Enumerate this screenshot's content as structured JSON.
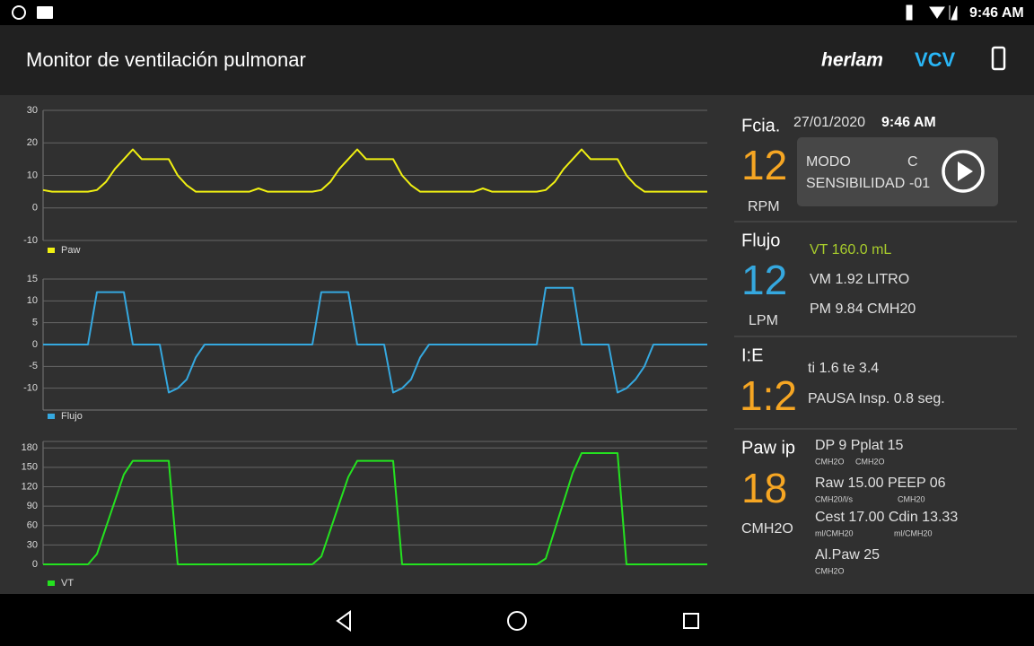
{
  "status_bar": {
    "time": "9:46 AM"
  },
  "header": {
    "title": "Monitor de ventilación pulmonar",
    "brand": "herlam",
    "mode": "VCV"
  },
  "chart_data": [
    {
      "type": "line",
      "ylim": [
        -10,
        30
      ],
      "yticks": [
        -10,
        0,
        10,
        20,
        30
      ],
      "grid": true,
      "series": [
        {
          "name": "Paw",
          "color": "#f0f012",
          "values": [
            5.5,
            5,
            5,
            5,
            5,
            5,
            5.5,
            8,
            12,
            15,
            18,
            15,
            15,
            15,
            15,
            10,
            7,
            5,
            5,
            5,
            5,
            5,
            5,
            5,
            6,
            5,
            5,
            5,
            5,
            5,
            5,
            5.5,
            8,
            12,
            15,
            18,
            15,
            15,
            15,
            15,
            10,
            7,
            5,
            5,
            5,
            5,
            5,
            5,
            5,
            6,
            5,
            5,
            5,
            5,
            5,
            5,
            5.5,
            8,
            12,
            15,
            18,
            15,
            15,
            15,
            15,
            10,
            7,
            5,
            5,
            5,
            5,
            5,
            5,
            5,
            5
          ]
        }
      ]
    },
    {
      "type": "line",
      "ylim": [
        -15,
        15
      ],
      "yticks": [
        -10,
        -5,
        0,
        5,
        10,
        15
      ],
      "grid": true,
      "series": [
        {
          "name": "Flujo",
          "color": "#35a8df",
          "values": [
            0,
            0,
            0,
            0,
            0,
            0,
            12,
            12,
            12,
            12,
            0,
            0,
            0,
            0,
            -11,
            -10,
            -8,
            -3,
            0,
            0,
            0,
            0,
            0,
            0,
            0,
            0,
            0,
            0,
            0,
            0,
            0,
            12,
            12,
            12,
            12,
            0,
            0,
            0,
            0,
            -11,
            -10,
            -8,
            -3,
            0,
            0,
            0,
            0,
            0,
            0,
            0,
            0,
            0,
            0,
            0,
            0,
            0,
            13,
            13,
            13,
            13,
            0,
            0,
            0,
            0,
            -11,
            -10,
            -8,
            -5,
            0,
            0,
            0,
            0,
            0,
            0,
            0
          ]
        }
      ]
    },
    {
      "type": "line",
      "ylim": [
        0,
        190
      ],
      "yticks": [
        0,
        30,
        60,
        90,
        120,
        150,
        180
      ],
      "grid": true,
      "series": [
        {
          "name": "VT",
          "color": "#24e21f",
          "values": [
            0,
            0,
            0,
            0,
            0,
            0,
            16,
            57,
            98,
            139,
            160,
            160,
            160,
            160,
            160,
            0,
            0,
            0,
            0,
            0,
            0,
            0,
            0,
            0,
            0,
            0,
            0,
            0,
            0,
            0,
            0,
            12,
            53,
            94,
            135,
            160,
            160,
            160,
            160,
            160,
            0,
            0,
            0,
            0,
            0,
            0,
            0,
            0,
            0,
            0,
            0,
            0,
            0,
            0,
            0,
            0,
            9,
            53,
            97,
            141,
            172,
            172,
            172,
            172,
            172,
            0,
            0,
            0,
            0,
            0,
            0,
            0,
            0,
            0,
            0
          ]
        }
      ]
    }
  ],
  "panel": {
    "fcia": {
      "label": "Fcia.",
      "date": "27/01/2020",
      "time": "9:46 AM",
      "value": "12",
      "unit": "RPM",
      "modo_label": "MODO",
      "modo_value": "C",
      "sens_label": "SENSIBILIDAD",
      "sens_value": "-01"
    },
    "flujo": {
      "label": "Flujo",
      "value": "12",
      "unit": "LPM",
      "vt": "VT  160.0  mL",
      "vm": "VM  1.92  LITRO",
      "pm": "PM  9.84  CMH20"
    },
    "ie": {
      "label": "I:E",
      "value": "1:2",
      "times": "ti  1.6  te  3.4",
      "pausa": "PAUSA Insp.  0.8  seg."
    },
    "paw": {
      "label": "Paw ip",
      "value": "18",
      "unit": "CMH2O",
      "items": [
        {
          "text": "DP 9 Pplat 15",
          "units": [
            "CMH2O",
            "CMH2O"
          ]
        },
        {
          "text": "Raw 15.00 PEEP 06",
          "units": [
            "CMH20/l/s",
            "CMH20"
          ]
        },
        {
          "text": "Cest 17.00 Cdin 13.33",
          "units": [
            "ml/CMH20",
            "ml/CMH20"
          ]
        },
        {
          "text": "Al.Paw 25",
          "units": [
            "CMH2O"
          ]
        }
      ]
    }
  }
}
